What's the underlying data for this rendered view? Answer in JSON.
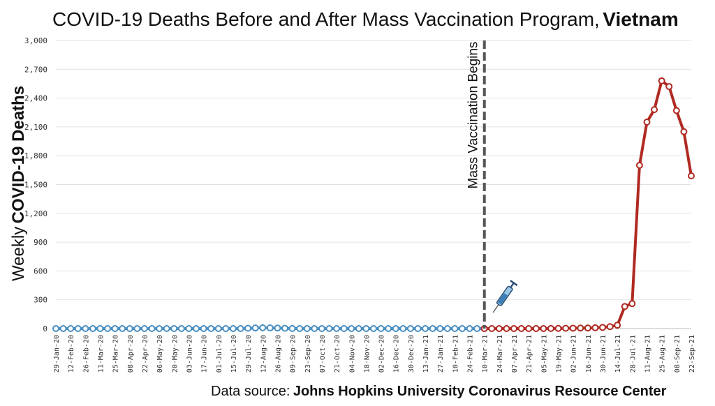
{
  "chart_data": {
    "type": "line",
    "title": "COVID-19 Deaths Before and After Mass Vaccination Program,",
    "title_bold": "Vietnam",
    "ylabel_prefix": "Weekly",
    "ylabel_bold": "COVID-19 Deaths",
    "ylim": [
      0,
      3000
    ],
    "yticks": [
      0,
      300,
      600,
      900,
      1200,
      1500,
      1800,
      2100,
      2400,
      2700,
      3000
    ],
    "ytick_labels": [
      "0",
      "300",
      "600",
      "900",
      "1,200",
      "1,500",
      "1,800",
      "2,100",
      "2,400",
      "2,700",
      "3,000"
    ],
    "grid": true,
    "x_tick_labels": [
      "29-Jan-20",
      "12-Feb-20",
      "26-Feb-20",
      "11-Mar-20",
      "25-Mar-20",
      "08-Apr-20",
      "22-Apr-20",
      "06-May-20",
      "20-May-20",
      "03-Jun-20",
      "17-Jun-20",
      "01-Jul-20",
      "15-Jul-20",
      "29-Jul-20",
      "12-Aug-20",
      "26-Aug-20",
      "09-Sep-20",
      "23-Sep-20",
      "07-Oct-20",
      "21-Oct-20",
      "04-Nov-20",
      "18-Nov-20",
      "02-Dec-20",
      "16-Dec-20",
      "30-Dec-20",
      "13-Jan-21",
      "27-Jan-21",
      "10-Feb-21",
      "24-Feb-21",
      "10-Mar-21",
      "24-Mar-21",
      "07-Apr-21",
      "21-Apr-21",
      "05-May-21",
      "19-May-21",
      "02-Jun-21",
      "16-Jun-21",
      "30-Jun-21",
      "14-Jul-21",
      "28-Jul-21",
      "11-Aug-21",
      "25-Aug-21",
      "08-Sep-21",
      "22-Sep-21"
    ],
    "annotation": {
      "label": "Mass Vaccination Begins",
      "x": "10-Mar-21",
      "icon": "syringe-icon"
    },
    "series": [
      {
        "color": "#4a8fc2",
        "period": "before",
        "x": [
          "29-Jan-20",
          "05-Feb-20",
          "12-Feb-20",
          "19-Feb-20",
          "26-Feb-20",
          "04-Mar-20",
          "11-Mar-20",
          "18-Mar-20",
          "25-Mar-20",
          "01-Apr-20",
          "08-Apr-20",
          "15-Apr-20",
          "22-Apr-20",
          "29-Apr-20",
          "06-May-20",
          "13-May-20",
          "20-May-20",
          "27-May-20",
          "03-Jun-20",
          "10-Jun-20",
          "17-Jun-20",
          "24-Jun-20",
          "01-Jul-20",
          "08-Jul-20",
          "15-Jul-20",
          "22-Jul-20",
          "29-Jul-20",
          "05-Aug-20",
          "12-Aug-20",
          "19-Aug-20",
          "26-Aug-20",
          "02-Sep-20",
          "09-Sep-20",
          "16-Sep-20",
          "23-Sep-20",
          "30-Sep-20",
          "07-Oct-20",
          "14-Oct-20",
          "21-Oct-20",
          "28-Oct-20",
          "04-Nov-20",
          "11-Nov-20",
          "18-Nov-20",
          "25-Nov-20",
          "02-Dec-20",
          "09-Dec-20",
          "16-Dec-20",
          "23-Dec-20",
          "30-Dec-20",
          "06-Jan-21",
          "13-Jan-21",
          "20-Jan-21",
          "27-Jan-21",
          "03-Feb-21",
          "10-Feb-21",
          "17-Feb-21",
          "24-Feb-21",
          "03-Mar-21",
          "10-Mar-21"
        ],
        "values": [
          0,
          0,
          0,
          0,
          0,
          0,
          0,
          0,
          0,
          0,
          0,
          0,
          0,
          0,
          0,
          0,
          0,
          0,
          0,
          0,
          0,
          0,
          0,
          0,
          0,
          0,
          3,
          6,
          8,
          7,
          5,
          3,
          1,
          0,
          0,
          0,
          0,
          0,
          0,
          0,
          0,
          0,
          0,
          0,
          0,
          0,
          0,
          0,
          0,
          0,
          0,
          0,
          0,
          0,
          0,
          0,
          0,
          0,
          0
        ]
      },
      {
        "color": "#b02a22",
        "period": "after",
        "x": [
          "10-Mar-21",
          "17-Mar-21",
          "24-Mar-21",
          "31-Mar-21",
          "07-Apr-21",
          "14-Apr-21",
          "21-Apr-21",
          "28-Apr-21",
          "05-May-21",
          "12-May-21",
          "19-May-21",
          "26-May-21",
          "02-Jun-21",
          "09-Jun-21",
          "16-Jun-21",
          "23-Jun-21",
          "30-Jun-21",
          "07-Jul-21",
          "14-Jul-21",
          "21-Jul-21",
          "28-Jul-21",
          "04-Aug-21",
          "11-Aug-21",
          "18-Aug-21",
          "25-Aug-21",
          "01-Sep-21",
          "08-Sep-21",
          "15-Sep-21",
          "22-Sep-21"
        ],
        "values": [
          0,
          0,
          0,
          0,
          0,
          0,
          0,
          0,
          0,
          1,
          2,
          3,
          4,
          5,
          6,
          8,
          12,
          20,
          35,
          230,
          260,
          1700,
          2150,
          2280,
          2580,
          2520,
          2270,
          2050,
          1590
        ]
      }
    ]
  },
  "source": {
    "prefix": "Data source:",
    "name": "Johns Hopkins University Coronavirus Resource Center"
  }
}
